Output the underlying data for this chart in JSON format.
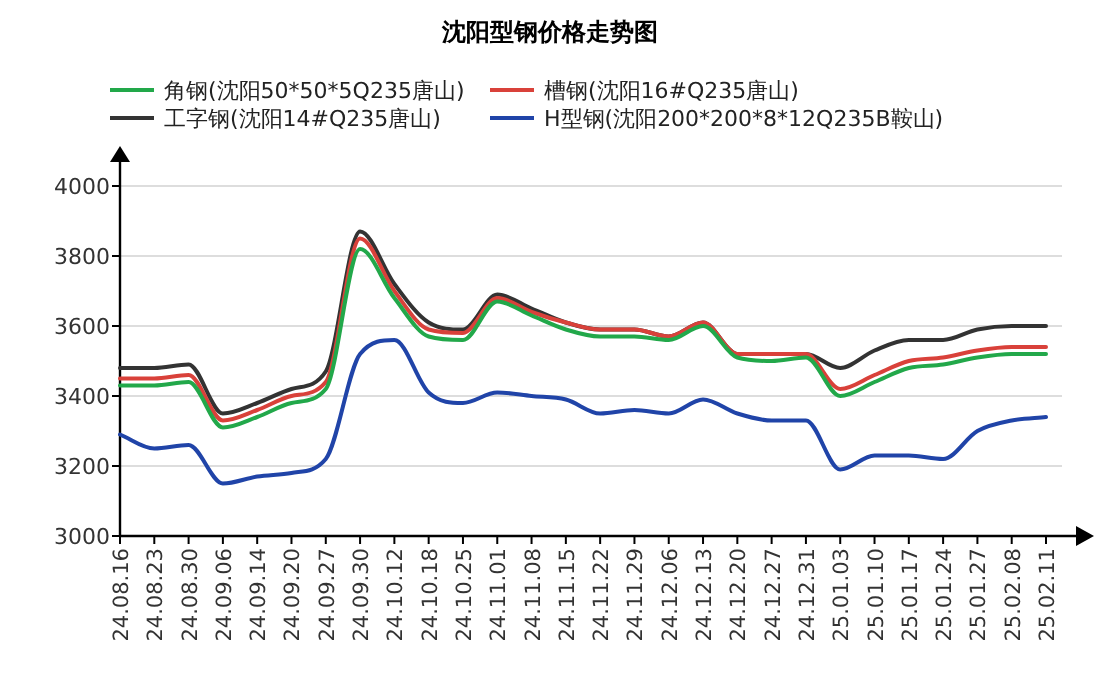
{
  "chart_data": {
    "type": "line",
    "title": "沈阳型钢价格走势图",
    "categories": [
      "24.08.16",
      "24.08.23",
      "24.08.30",
      "24.09.06",
      "24.09.14",
      "24.09.20",
      "24.09.27",
      "24.09.30",
      "24.10.12",
      "24.10.18",
      "24.10.25",
      "24.11.01",
      "24.11.08",
      "24.11.15",
      "24.11.22",
      "24.11.29",
      "24.12.06",
      "24.12.13",
      "24.12.20",
      "24.12.27",
      "24.12.31",
      "25.01.03",
      "25.01.10",
      "25.01.17",
      "25.01.24",
      "25.01.27",
      "25.02.08",
      "25.02.11"
    ],
    "series": [
      {
        "name": "角钢(沈阳50*50*5Q235唐山)",
        "color": "#22a84a",
        "values": [
          3430,
          3430,
          3440,
          3310,
          3340,
          3380,
          3420,
          3820,
          3680,
          3570,
          3560,
          3670,
          3630,
          3590,
          3570,
          3570,
          3560,
          3600,
          3510,
          3500,
          3510,
          3400,
          3440,
          3480,
          3490,
          3510,
          3520,
          3520
        ]
      },
      {
        "name": "槽钢(沈阳16#Q235唐山)",
        "color": "#d9413a",
        "values": [
          3450,
          3450,
          3460,
          3330,
          3360,
          3400,
          3440,
          3850,
          3700,
          3590,
          3580,
          3680,
          3640,
          3610,
          3590,
          3590,
          3570,
          3610,
          3520,
          3520,
          3520,
          3420,
          3460,
          3500,
          3510,
          3530,
          3540,
          3540
        ]
      },
      {
        "name": "工字钢(沈阳14#Q235唐山)",
        "color": "#333333",
        "values": [
          3480,
          3480,
          3490,
          3350,
          3380,
          3420,
          3470,
          3870,
          3720,
          3610,
          3590,
          3690,
          3650,
          3610,
          3590,
          3590,
          3570,
          3610,
          3520,
          3520,
          3520,
          3480,
          3530,
          3560,
          3560,
          3590,
          3600,
          3600
        ]
      },
      {
        "name": "H型钢(沈阳200*200*8*12Q235B鞍山)",
        "color": "#2044a8",
        "values": [
          3290,
          3250,
          3260,
          3150,
          3170,
          3180,
          3220,
          3520,
          3560,
          3410,
          3380,
          3410,
          3400,
          3390,
          3350,
          3360,
          3350,
          3390,
          3350,
          3330,
          3330,
          3190,
          3230,
          3230,
          3220,
          3300,
          3330,
          3340
        ]
      }
    ],
    "ylim": [
      3000,
      4000
    ],
    "yticks": [
      3000,
      3200,
      3400,
      3600,
      3800,
      4000
    ],
    "grid": "y",
    "legend": "top",
    "marker": "none",
    "line_style": "solid"
  }
}
